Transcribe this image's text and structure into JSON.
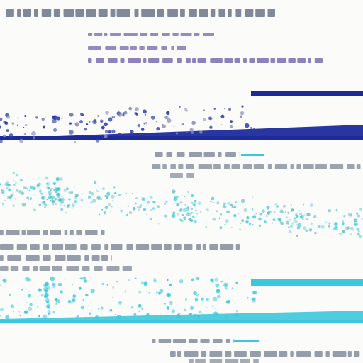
{
  "colors": {
    "background": "#fbfbfa",
    "navy": "#1e2a9c",
    "navy_dot": "#2a3aa8",
    "cyan": "#3cc8dc",
    "teal": "#5ab8c0",
    "gray_text": "#6a7488",
    "violet_text": "#6a5aa8"
  },
  "bands": [
    {
      "name": "top-band",
      "color": "navy"
    },
    {
      "name": "middle-band",
      "color": "teal"
    },
    {
      "name": "bottom-band",
      "color": "cyan"
    }
  ],
  "text": {}
}
